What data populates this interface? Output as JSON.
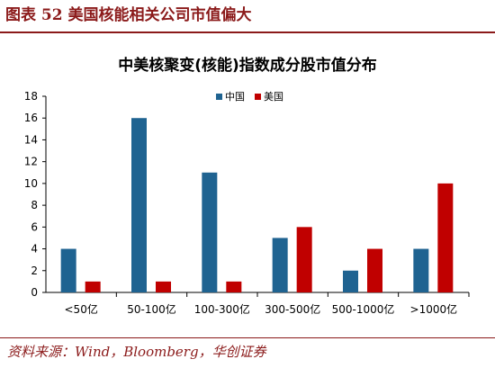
{
  "figure": {
    "caption": "图表 52    美国核能相关公司市值偏大",
    "source": "资料来源：Wind，Bloomberg，华创证券"
  },
  "colors": {
    "china": "#1f6391",
    "usa": "#c00000",
    "brand": "#8b1a1a"
  },
  "chart_data": {
    "type": "bar",
    "title": "中美核聚变(核能)指数成分股市值分布",
    "categories": [
      "<50亿",
      "50-100亿",
      "100-300亿",
      "300-500亿",
      "500-1000亿",
      ">1000亿"
    ],
    "series": [
      {
        "name": "中国",
        "values": [
          4,
          16,
          11,
          5,
          2,
          4
        ]
      },
      {
        "name": "美国",
        "values": [
          1,
          1,
          1,
          6,
          4,
          10
        ]
      }
    ],
    "ylim": [
      0,
      18
    ],
    "yticks": [
      0,
      2,
      4,
      6,
      8,
      10,
      12,
      14,
      16,
      18
    ],
    "legend_position": "top-center",
    "grid": false
  }
}
